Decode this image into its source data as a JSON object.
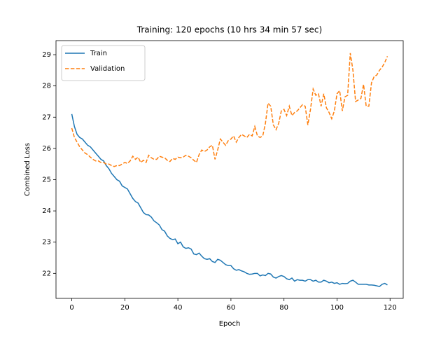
{
  "chart_data": {
    "type": "line",
    "title": "Training: 120 epochs (10 hrs 34 min 57 sec)",
    "x_label": "Epoch",
    "y_label": "Combined Loss",
    "x": [
      0,
      1,
      2,
      3,
      4,
      5,
      6,
      7,
      8,
      9,
      10,
      11,
      12,
      13,
      14,
      15,
      16,
      17,
      18,
      19,
      20,
      21,
      22,
      23,
      24,
      25,
      26,
      27,
      28,
      29,
      30,
      31,
      32,
      33,
      34,
      35,
      36,
      37,
      38,
      39,
      40,
      41,
      42,
      43,
      44,
      45,
      46,
      47,
      48,
      49,
      50,
      51,
      52,
      53,
      54,
      55,
      56,
      57,
      58,
      59,
      60,
      61,
      62,
      63,
      64,
      65,
      66,
      67,
      68,
      69,
      70,
      71,
      72,
      73,
      74,
      75,
      76,
      77,
      78,
      79,
      80,
      81,
      82,
      83,
      84,
      85,
      86,
      87,
      88,
      89,
      90,
      91,
      92,
      93,
      94,
      95,
      96,
      97,
      98,
      99,
      100,
      101,
      102,
      103,
      104,
      105,
      106,
      107,
      108,
      109,
      110,
      111,
      112,
      113,
      114,
      115,
      116,
      117,
      118,
      119
    ],
    "series": [
      {
        "name": "Train",
        "color": "#1f77b4",
        "dash": false,
        "values": [
          27.1,
          26.7,
          26.45,
          26.35,
          26.3,
          26.2,
          26.1,
          26.05,
          25.95,
          25.85,
          25.75,
          25.65,
          25.6,
          25.45,
          25.35,
          25.2,
          25.1,
          25.0,
          24.95,
          24.8,
          24.75,
          24.7,
          24.55,
          24.4,
          24.3,
          24.25,
          24.1,
          23.95,
          23.88,
          23.87,
          23.8,
          23.68,
          23.62,
          23.55,
          23.4,
          23.35,
          23.2,
          23.12,
          23.08,
          23.1,
          22.95,
          23.0,
          22.85,
          22.8,
          22.82,
          22.78,
          22.62,
          22.6,
          22.65,
          22.55,
          22.47,
          22.45,
          22.47,
          22.38,
          22.35,
          22.45,
          22.42,
          22.35,
          22.28,
          22.25,
          22.25,
          22.15,
          22.1,
          22.12,
          22.08,
          22.05,
          22.0,
          21.97,
          21.98,
          22.0,
          22.0,
          21.92,
          21.95,
          21.93,
          22.0,
          21.98,
          21.88,
          21.85,
          21.9,
          21.93,
          21.9,
          21.83,
          21.8,
          21.85,
          21.75,
          21.8,
          21.78,
          21.78,
          21.75,
          21.8,
          21.8,
          21.75,
          21.78,
          21.72,
          21.72,
          21.78,
          21.75,
          21.7,
          21.72,
          21.68,
          21.7,
          21.65,
          21.68,
          21.67,
          21.68,
          21.75,
          21.78,
          21.72,
          21.65,
          21.65,
          21.65,
          21.65,
          21.63,
          21.63,
          21.62,
          21.6,
          21.58,
          21.65,
          21.68,
          21.63
        ]
      },
      {
        "name": "Validation",
        "color": "#ff7f0e",
        "dash": true,
        "values": [
          26.65,
          26.35,
          26.2,
          26.05,
          25.95,
          25.85,
          25.8,
          25.72,
          25.65,
          25.6,
          25.6,
          25.55,
          25.55,
          25.5,
          25.5,
          25.45,
          25.42,
          25.45,
          25.45,
          25.5,
          25.55,
          25.52,
          25.6,
          25.75,
          25.65,
          25.72,
          25.55,
          25.62,
          25.55,
          25.78,
          25.7,
          25.65,
          25.65,
          25.75,
          25.72,
          25.7,
          25.62,
          25.58,
          25.68,
          25.65,
          25.72,
          25.7,
          25.72,
          25.78,
          25.75,
          25.7,
          25.62,
          25.55,
          25.8,
          25.95,
          25.9,
          25.95,
          26.05,
          26.1,
          25.65,
          25.95,
          26.3,
          26.2,
          26.1,
          26.25,
          26.3,
          26.4,
          26.2,
          26.35,
          26.45,
          26.4,
          26.35,
          26.45,
          26.4,
          26.7,
          26.4,
          26.35,
          26.4,
          26.8,
          27.45,
          27.35,
          26.75,
          26.6,
          26.8,
          27.2,
          27.25,
          27.05,
          27.35,
          27.05,
          27.15,
          27.2,
          27.3,
          27.4,
          27.35,
          26.75,
          27.25,
          27.9,
          27.7,
          27.75,
          27.35,
          27.75,
          27.3,
          27.15,
          26.95,
          27.2,
          27.75,
          27.85,
          27.2,
          27.65,
          27.7,
          29.05,
          28.5,
          27.5,
          27.55,
          27.6,
          28.05,
          27.35,
          27.35,
          28.1,
          28.3,
          28.35,
          28.5,
          28.6,
          28.75,
          28.95
        ]
      }
    ],
    "xlim": [
      -5.95,
      124.95
    ],
    "xticks": [
      0,
      20,
      40,
      60,
      80,
      100,
      120
    ],
    "ylim": [
      21.2,
      29.45
    ],
    "yticks": [
      22,
      23,
      24,
      25,
      26,
      27,
      28,
      29
    ],
    "legend": "upper left"
  }
}
